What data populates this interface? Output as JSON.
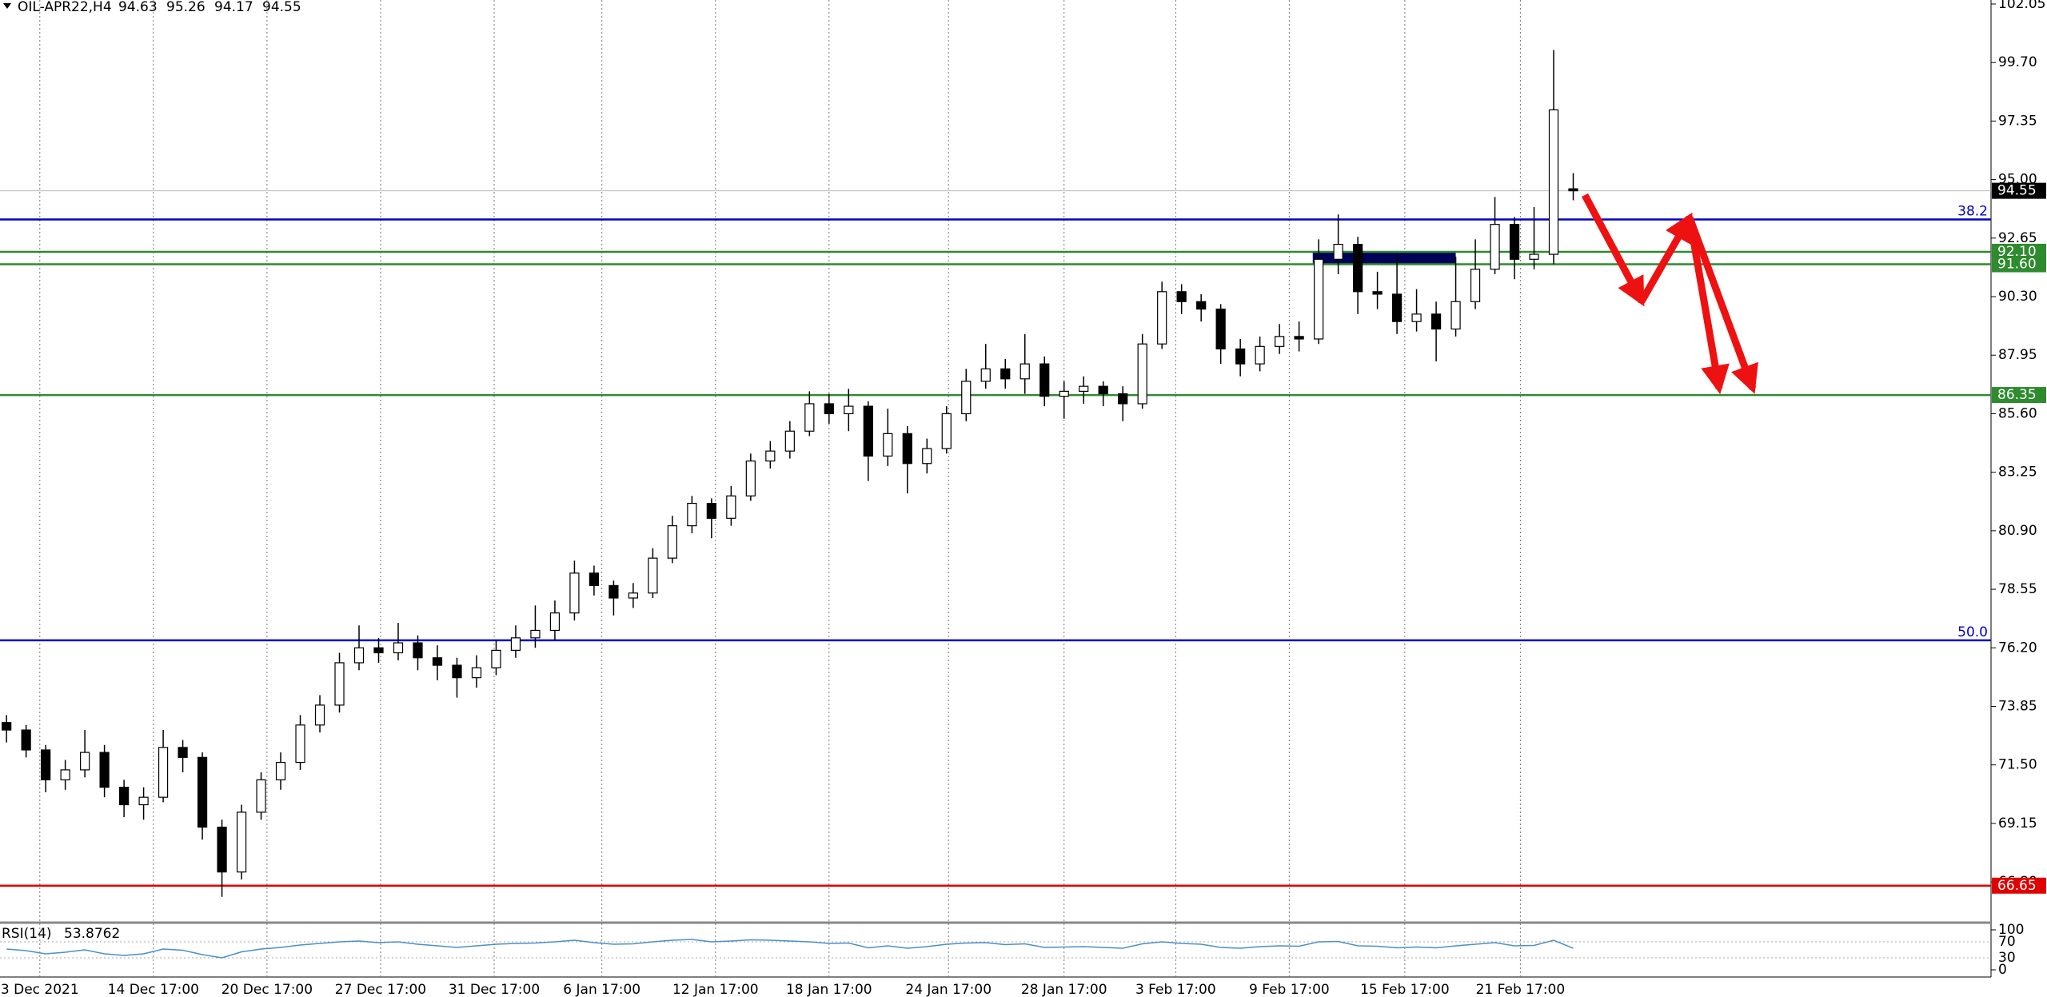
{
  "chart_data": {
    "type": "candlestick",
    "symbol": "OIL-APR22,H4",
    "open": [
      73.2,
      72.9,
      72.1,
      70.9,
      71.3,
      72.0,
      70.6,
      69.9,
      70.2,
      72.2,
      71.8,
      69.0,
      67.2,
      69.6,
      70.9,
      71.6,
      73.1,
      73.9,
      75.6,
      76.2,
      76.0,
      76.4,
      75.8,
      75.5,
      75.0,
      75.4,
      76.1,
      76.6,
      76.9,
      77.6,
      79.2,
      78.7,
      78.2,
      78.4,
      79.8,
      81.1,
      82.0,
      81.4,
      82.3,
      83.7,
      84.1,
      84.9,
      86.0,
      85.6,
      85.9,
      83.9,
      84.8,
      83.6,
      84.2,
      85.6,
      86.9,
      87.4,
      87.0,
      87.6,
      86.3,
      86.5,
      86.7,
      86.4,
      86.0,
      88.4,
      90.5,
      90.1,
      89.8,
      88.2,
      87.6,
      88.3,
      88.7,
      88.6,
      91.8,
      92.4,
      90.5,
      90.4,
      89.3,
      89.6,
      89.0,
      90.1,
      91.4,
      93.2,
      91.8,
      92.0,
      94.63
    ],
    "high": [
      73.5,
      73.1,
      72.3,
      71.7,
      72.9,
      72.3,
      70.9,
      70.6,
      72.9,
      72.5,
      72.0,
      69.3,
      69.9,
      71.2,
      72.0,
      73.5,
      74.3,
      76.0,
      77.1,
      76.6,
      77.2,
      76.7,
      76.3,
      75.8,
      75.9,
      76.5,
      77.1,
      77.9,
      78.1,
      79.7,
      79.5,
      78.9,
      78.8,
      80.2,
      81.5,
      82.3,
      82.2,
      82.7,
      84.0,
      84.5,
      85.3,
      86.5,
      86.4,
      86.6,
      86.1,
      85.8,
      85.1,
      84.6,
      85.9,
      87.4,
      88.4,
      87.8,
      88.8,
      87.9,
      86.9,
      87.1,
      86.9,
      86.7,
      88.8,
      90.9,
      90.8,
      90.4,
      90.0,
      88.6,
      88.7,
      89.2,
      89.3,
      92.6,
      93.6,
      92.7,
      91.3,
      92.0,
      90.6,
      90.1,
      91.9,
      92.6,
      94.3,
      93.5,
      93.9,
      100.2,
      95.26
    ],
    "low": [
      72.4,
      71.8,
      70.4,
      70.5,
      71.0,
      70.2,
      69.4,
      69.3,
      70.0,
      71.2,
      68.5,
      66.2,
      66.9,
      69.3,
      70.5,
      71.3,
      72.8,
      73.6,
      75.3,
      75.6,
      75.7,
      75.3,
      74.9,
      74.2,
      74.6,
      75.1,
      75.8,
      76.2,
      76.5,
      77.3,
      78.3,
      77.5,
      77.8,
      78.2,
      79.6,
      80.8,
      80.6,
      81.1,
      82.1,
      83.4,
      83.8,
      84.7,
      85.2,
      84.9,
      82.9,
      83.5,
      82.4,
      83.2,
      84.0,
      85.3,
      86.6,
      86.6,
      86.4,
      85.9,
      85.4,
      86.0,
      85.9,
      85.3,
      85.8,
      88.2,
      89.6,
      89.3,
      87.6,
      87.1,
      87.3,
      88.0,
      88.1,
      88.4,
      91.2,
      89.6,
      89.8,
      88.8,
      88.9,
      87.7,
      88.7,
      89.8,
      91.2,
      91.0,
      91.4,
      91.6,
      94.17
    ],
    "close": [
      72.9,
      72.1,
      70.9,
      71.3,
      72.0,
      70.6,
      69.9,
      70.2,
      72.2,
      71.8,
      69.0,
      67.2,
      69.6,
      70.9,
      71.6,
      73.1,
      73.9,
      75.6,
      76.2,
      76.0,
      76.4,
      75.8,
      75.5,
      75.0,
      75.4,
      76.1,
      76.6,
      76.9,
      77.6,
      79.2,
      78.7,
      78.2,
      78.4,
      79.8,
      81.1,
      82.0,
      81.4,
      82.3,
      83.7,
      84.1,
      84.9,
      86.0,
      85.6,
      85.9,
      83.9,
      84.8,
      83.6,
      84.2,
      85.6,
      86.9,
      87.4,
      87.0,
      87.6,
      86.3,
      86.5,
      86.7,
      86.4,
      86.0,
      88.4,
      90.5,
      90.1,
      89.8,
      88.2,
      87.6,
      88.3,
      88.7,
      88.6,
      91.8,
      92.4,
      90.5,
      90.4,
      89.3,
      89.6,
      89.0,
      90.1,
      91.4,
      93.2,
      91.8,
      92.0,
      97.8,
      94.55
    ],
    "xlim": [
      -0.333,
      101.333
    ],
    "xticks": [
      {
        "value": 1.7,
        "label": "3 Dec 2021"
      },
      {
        "value": 7.5,
        "label": "14 Dec 17:00"
      },
      {
        "value": 13.3,
        "label": "20 Dec 17:00"
      },
      {
        "value": 19.1,
        "label": "27 Dec 17:00"
      },
      {
        "value": 24.9,
        "label": "31 Dec 17:00"
      },
      {
        "value": 30.4,
        "label": "6 Jan 17:00"
      },
      {
        "value": 36.2,
        "label": "12 Jan 17:00"
      },
      {
        "value": 42,
        "label": "18 Jan 17:00"
      },
      {
        "value": 48.1,
        "label": "24 Jan 17:00"
      },
      {
        "value": 54,
        "label": "28 Jan 17:00"
      },
      {
        "value": 59.7,
        "label": "3 Feb 17:00"
      },
      {
        "value": 65.5,
        "label": "9 Feb 17:00"
      },
      {
        "value": 71.4,
        "label": "15 Feb 17:00"
      },
      {
        "value": 77.3,
        "label": "21 Feb 17:00"
      }
    ],
    "ylim": [
      65.23,
      102.21
    ],
    "yticks": [
      {
        "value": 102.05,
        "label": "102.05"
      },
      {
        "value": 99.7,
        "label": "99.70"
      },
      {
        "value": 97.35,
        "label": "97.35"
      },
      {
        "value": 95,
        "label": "95.00"
      },
      {
        "value": 92.65,
        "label": "92.65"
      },
      {
        "value": 90.3,
        "label": "90.30"
      },
      {
        "value": 87.95,
        "label": "87.95"
      },
      {
        "value": 85.6,
        "label": "85.60"
      },
      {
        "value": 83.25,
        "label": "83.25"
      },
      {
        "value": 80.9,
        "label": "80.90"
      },
      {
        "value": 78.55,
        "label": "78.55"
      },
      {
        "value": 76.2,
        "label": "76.20"
      },
      {
        "value": 73.85,
        "label": "73.85"
      },
      {
        "value": 71.5,
        "label": "71.50"
      },
      {
        "value": 69.15,
        "label": "69.15"
      },
      {
        "value": 66.8,
        "label": "66.80"
      }
    ],
    "levels": [
      {
        "value": 93.4,
        "label": "38.2",
        "color": "#0000c8",
        "label_position": "line"
      },
      {
        "value": 92.1,
        "label": "92.10",
        "color": "#2e8b2e",
        "label_position": "axis"
      },
      {
        "value": 91.6,
        "label": "91.60",
        "color": "#2e8b2e",
        "label_position": "axis"
      },
      {
        "value": 86.35,
        "label": "86.35",
        "color": "#2e8b2e",
        "label_position": "axis"
      },
      {
        "value": 76.5,
        "label": "50.0",
        "color": "#0000c8",
        "label_position": "line"
      },
      {
        "value": 66.65,
        "label": "66.65",
        "color": "#e00000",
        "label_position": "axis"
      }
    ],
    "zones": [
      {
        "x": [
          66.7,
          74.0
        ],
        "y": [
          91.6,
          92.1
        ],
        "color": "#00005a"
      }
    ],
    "rsi": {
      "label": "RSI(14)",
      "current": 53.8762,
      "color": "#4a90c8",
      "ylim": [
        0,
        100
      ],
      "yticks": [
        0,
        30,
        70,
        100
      ],
      "values": [
        52,
        48,
        40,
        44,
        50,
        40,
        36,
        40,
        52,
        49,
        38,
        30,
        45,
        52,
        56,
        62,
        66,
        70,
        72,
        68,
        70,
        64,
        60,
        56,
        60,
        64,
        66,
        67,
        70,
        74,
        68,
        64,
        65,
        70,
        74,
        76,
        70,
        72,
        75,
        74,
        72,
        70,
        66,
        67,
        55,
        60,
        54,
        58,
        64,
        67,
        68,
        63,
        65,
        56,
        57,
        58,
        56,
        54,
        65,
        70,
        66,
        64,
        56,
        54,
        58,
        60,
        59,
        70,
        71,
        60,
        59,
        55,
        57,
        55,
        60,
        64,
        68,
        60,
        61,
        74,
        53.8762
      ]
    }
  }
}
